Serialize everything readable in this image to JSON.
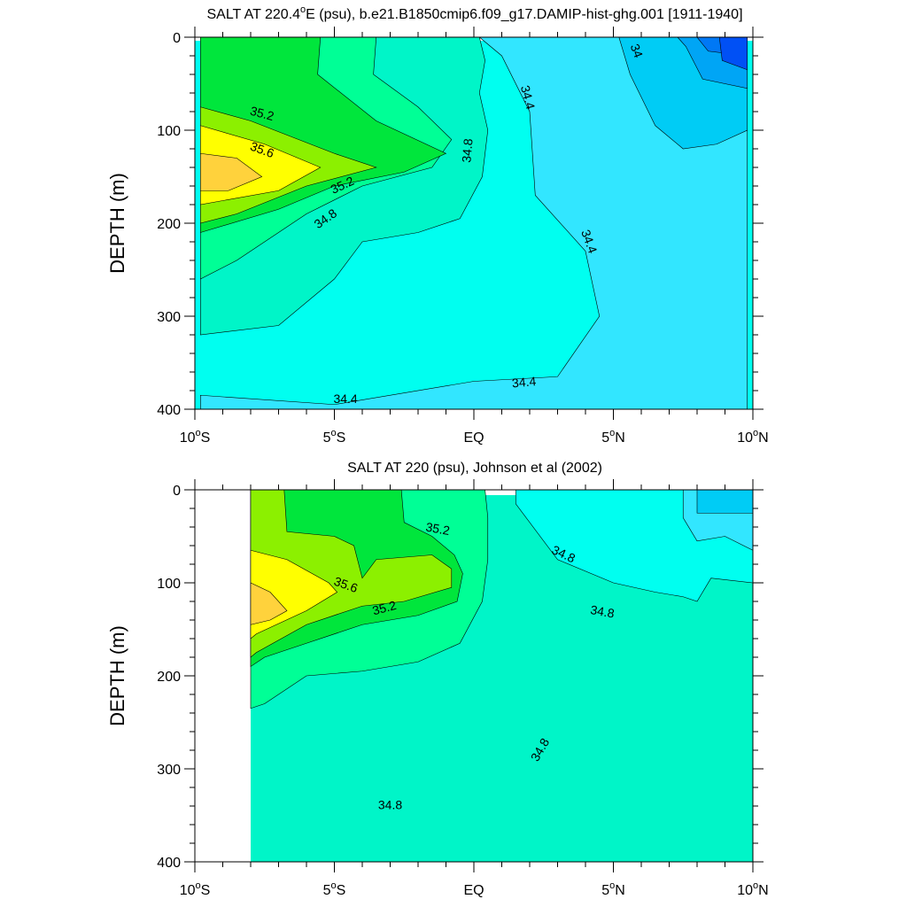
{
  "chart_data": [
    {
      "type": "contour",
      "title_main": "SALT AT 220.4",
      "title_deg": "o",
      "title_rest": "E (psu), b.e21.B1850cmip6.f09_g17.DAMIP-hist-ghg.001 [1911-1940]",
      "ylabel": "DEPTH (m)",
      "xlim": [
        -10,
        10
      ],
      "ylim": [
        400,
        0
      ],
      "x_ticks": [
        {
          "value": -10,
          "num": "10",
          "deg": "o",
          "hemi": "S"
        },
        {
          "value": -5,
          "num": "5",
          "deg": "o",
          "hemi": "S"
        },
        {
          "value": 0,
          "num": "EQ",
          "deg": "",
          "hemi": ""
        },
        {
          "value": 5,
          "num": "5",
          "deg": "o",
          "hemi": "N"
        },
        {
          "value": 10,
          "num": "10",
          "deg": "o",
          "hemi": "N"
        }
      ],
      "y_ticks": [
        "0",
        "100",
        "200",
        "300",
        "400"
      ],
      "contour_interval": 0.2,
      "colors": {
        "33.6": "#0050f5",
        "33.8": "#0078f5",
        "34.0": "#00a5f5",
        "34.2": "#00ccf5",
        "34.4": "#32e6ff",
        "34.6": "#00fff0",
        "34.8": "#00f5c8",
        "35.0": "#00ff96",
        "35.2": "#00e63c",
        "35.4": "#8cf000",
        "35.6": "#ffff00",
        "35.8": "#ffd23c"
      },
      "regions": [
        {
          "level": 34.2,
          "points": [
            [
              5.2,
              0
            ],
            [
              9.8,
              0
            ],
            [
              9.8,
              100
            ],
            [
              8.7,
              115
            ],
            [
              7.5,
              120
            ],
            [
              6.5,
              95
            ],
            [
              5.6,
              40
            ]
          ]
        },
        {
          "level": 34.0,
          "points": [
            [
              7.3,
              0
            ],
            [
              9.8,
              0
            ],
            [
              9.8,
              55
            ],
            [
              8.2,
              45
            ],
            [
              7.6,
              10
            ]
          ]
        },
        {
          "level": 33.8,
          "points": [
            [
              8.0,
              0
            ],
            [
              9.8,
              0
            ],
            [
              9.8,
              20
            ],
            [
              8.4,
              15
            ]
          ]
        },
        {
          "level": 33.6,
          "points": [
            [
              8.8,
              0
            ],
            [
              9.8,
              0
            ],
            [
              9.8,
              35
            ],
            [
              8.9,
              25
            ]
          ]
        },
        {
          "level": 34.8,
          "points": [
            [
              -9.8,
              0
            ],
            [
              0.2,
              0
            ],
            [
              0.4,
              25
            ],
            [
              0.2,
              60
            ],
            [
              0.5,
              100
            ],
            [
              0.3,
              150
            ],
            [
              -0.5,
              195
            ],
            [
              -2,
              210
            ],
            [
              -4,
              220
            ],
            [
              -5,
              260
            ],
            [
              -7,
              310
            ],
            [
              -9.8,
              320
            ]
          ]
        },
        {
          "level": 35.0,
          "points": [
            [
              -9.8,
              0
            ],
            [
              -3.5,
              0
            ],
            [
              -3.6,
              40
            ],
            [
              -2,
              75
            ],
            [
              -0.8,
              110
            ],
            [
              -1.5,
              140
            ],
            [
              -4,
              160
            ],
            [
              -6,
              190
            ],
            [
              -8.5,
              240
            ],
            [
              -9.8,
              260
            ]
          ]
        },
        {
          "level": 35.2,
          "points": [
            [
              -9.8,
              0
            ],
            [
              -5.5,
              0
            ],
            [
              -5.6,
              40
            ],
            [
              -3.5,
              90
            ],
            [
              -1,
              125
            ],
            [
              -2.5,
              145
            ],
            [
              -5,
              160
            ],
            [
              -7,
              185
            ],
            [
              -9.8,
              210
            ]
          ]
        },
        {
          "level": 35.4,
          "points": [
            [
              -9.8,
              75
            ],
            [
              -8,
              90
            ],
            [
              -5,
              125
            ],
            [
              -3.5,
              140
            ],
            [
              -6,
              160
            ],
            [
              -8.5,
              190
            ],
            [
              -9.8,
              200
            ]
          ]
        },
        {
          "level": 35.6,
          "points": [
            [
              -9.8,
              95
            ],
            [
              -7.5,
              115
            ],
            [
              -5.5,
              140
            ],
            [
              -7,
              165
            ],
            [
              -9.8,
              180
            ]
          ]
        },
        {
          "level": 35.8,
          "points": [
            [
              -9.8,
              125
            ],
            [
              -8.5,
              130
            ],
            [
              -7.6,
              150
            ],
            [
              -8.8,
              165
            ],
            [
              -9.8,
              165
            ]
          ]
        }
      ],
      "contour_labels": [
        {
          "text": "35.2",
          "x": -7.6,
          "y": 83,
          "rot": 15
        },
        {
          "text": "35.6",
          "x": -7.6,
          "y": 122,
          "rot": 20
        },
        {
          "text": "35.2",
          "x": -4.7,
          "y": 160,
          "rot": -25
        },
        {
          "text": "34.8",
          "x": -5.3,
          "y": 196,
          "rot": -35
        },
        {
          "text": "34.8",
          "x": -0.2,
          "y": 122,
          "rot": -85
        },
        {
          "text": "34.4",
          "x": 1.9,
          "y": 65,
          "rot": 75
        },
        {
          "text": "34",
          "x": 5.8,
          "y": 15,
          "rot": 70
        },
        {
          "text": "34.4",
          "x": 4.1,
          "y": 220,
          "rot": 70
        },
        {
          "text": "34.4",
          "x": 1.8,
          "y": 372,
          "rot": -5
        },
        {
          "text": "34.4",
          "x": -4.6,
          "y": 390,
          "rot": 0
        }
      ]
    },
    {
      "type": "contour",
      "title_main": "SALT AT 220 (psu), Johnson et al (2002)",
      "ylabel": "DEPTH (m)",
      "xlim": [
        -10,
        10
      ],
      "ylim": [
        400,
        0
      ],
      "x_ticks": [
        {
          "value": -10,
          "num": "10",
          "deg": "o",
          "hemi": "S"
        },
        {
          "value": -5,
          "num": "5",
          "deg": "o",
          "hemi": "S"
        },
        {
          "value": 0,
          "num": "EQ",
          "deg": "",
          "hemi": ""
        },
        {
          "value": 5,
          "num": "5",
          "deg": "o",
          "hemi": "N"
        },
        {
          "value": 10,
          "num": "10",
          "deg": "o",
          "hemi": "N"
        }
      ],
      "y_ticks": [
        "0",
        "100",
        "200",
        "300",
        "400"
      ],
      "data_xlim": [
        -8,
        10
      ],
      "contour_interval": 0.2,
      "colors": {
        "34.2": "#00ccf5",
        "34.4": "#32e6ff",
        "34.6": "#00fff0",
        "34.8": "#00f5c8",
        "35.0": "#00ff96",
        "35.2": "#00e63c",
        "35.4": "#8cf000",
        "35.6": "#ffff00",
        "35.8": "#ffd23c"
      },
      "regions": [
        {
          "level": 34.6,
          "points": [
            [
              1.5,
              0
            ],
            [
              10,
              0
            ],
            [
              10,
              100
            ],
            [
              8.5,
              95
            ],
            [
              8,
              120
            ],
            [
              7.5,
              115
            ],
            [
              6.5,
              110
            ],
            [
              5,
              100
            ],
            [
              3,
              75
            ],
            [
              1.5,
              15
            ]
          ]
        },
        {
          "level": 34.4,
          "points": [
            [
              7.5,
              0
            ],
            [
              10,
              0
            ],
            [
              10,
              65
            ],
            [
              9,
              50
            ],
            [
              8,
              55
            ],
            [
              7.5,
              30
            ]
          ]
        },
        {
          "level": 34.2,
          "points": [
            [
              8,
              0
            ],
            [
              10,
              0
            ],
            [
              10,
              25
            ],
            [
              8,
              25
            ]
          ]
        },
        {
          "level": 35.0,
          "points": [
            [
              -8,
              0
            ],
            [
              0.4,
              0
            ],
            [
              0.5,
              30
            ],
            [
              0.5,
              75
            ],
            [
              0.3,
              120
            ],
            [
              -0.5,
              165
            ],
            [
              -2,
              185
            ],
            [
              -4,
              195
            ],
            [
              -6,
              200
            ],
            [
              -7.5,
              230
            ],
            [
              -8,
              235
            ]
          ]
        },
        {
          "level": 35.2,
          "points": [
            [
              -8,
              0
            ],
            [
              -2.6,
              0
            ],
            [
              -2.5,
              35
            ],
            [
              -1.5,
              50
            ],
            [
              -0.7,
              70
            ],
            [
              -0.4,
              90
            ],
            [
              -0.6,
              120
            ],
            [
              -2,
              135
            ],
            [
              -4,
              145
            ],
            [
              -6,
              165
            ],
            [
              -7.5,
              180
            ],
            [
              -8,
              190
            ]
          ]
        },
        {
          "level": 35.4,
          "points": [
            [
              -8,
              0
            ],
            [
              -6.8,
              0
            ],
            [
              -6.7,
              45
            ],
            [
              -5,
              50
            ],
            [
              -4.3,
              60
            ],
            [
              -4,
              95
            ],
            [
              -3.5,
              75
            ],
            [
              -1.5,
              70
            ],
            [
              -0.8,
              85
            ],
            [
              -0.8,
              105
            ],
            [
              -2.5,
              120
            ],
            [
              -4,
              125
            ],
            [
              -6,
              145
            ],
            [
              -7.8,
              175
            ],
            [
              -8,
              180
            ]
          ]
        },
        {
          "level": 35.6,
          "points": [
            [
              -8,
              65
            ],
            [
              -6.7,
              75
            ],
            [
              -5.2,
              100
            ],
            [
              -4.9,
              110
            ],
            [
              -6,
              130
            ],
            [
              -7.8,
              155
            ],
            [
              -8,
              160
            ]
          ]
        },
        {
          "level": 35.8,
          "points": [
            [
              -8,
              100
            ],
            [
              -7.3,
              110
            ],
            [
              -6.7,
              130
            ],
            [
              -7.3,
              140
            ],
            [
              -8,
              145
            ]
          ]
        }
      ],
      "contour_labels": [
        {
          "text": "35.2",
          "x": -1.3,
          "y": 43,
          "rot": 10
        },
        {
          "text": "35.6",
          "x": -4.6,
          "y": 103,
          "rot": 20
        },
        {
          "text": "35.2",
          "x": -3.2,
          "y": 128,
          "rot": -15
        },
        {
          "text": "34.8",
          "x": 3.2,
          "y": 70,
          "rot": 25
        },
        {
          "text": "34.8",
          "x": 4.6,
          "y": 132,
          "rot": 10
        },
        {
          "text": "34.8",
          "x": 2.4,
          "y": 280,
          "rot": -60
        },
        {
          "text": "34.8",
          "x": -3,
          "y": 340,
          "rot": 0
        }
      ]
    }
  ]
}
